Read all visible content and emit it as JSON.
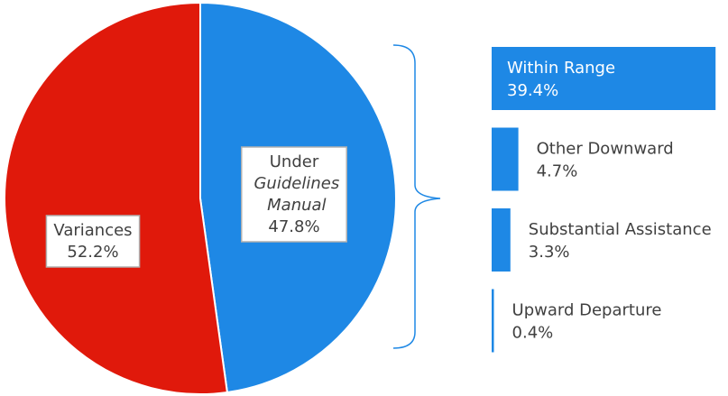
{
  "chart_data": [
    {
      "type": "pie",
      "categories": [
        "Under Guidelines Manual",
        "Variances"
      ],
      "values": [
        47.8,
        52.2
      ],
      "value_labels": [
        "47.8%",
        "52.2%"
      ],
      "colors": [
        "#1e88e5",
        "#e0190b"
      ]
    },
    {
      "type": "bar",
      "categories": [
        "Within Range",
        "Other Downward",
        "Substantial Assistance",
        "Upward Departure"
      ],
      "values": [
        39.4,
        4.7,
        3.3,
        0.4
      ],
      "value_labels": [
        "39.4%",
        "4.7%",
        "3.3%",
        "0.4%"
      ],
      "color": "#1e88e5"
    }
  ]
}
